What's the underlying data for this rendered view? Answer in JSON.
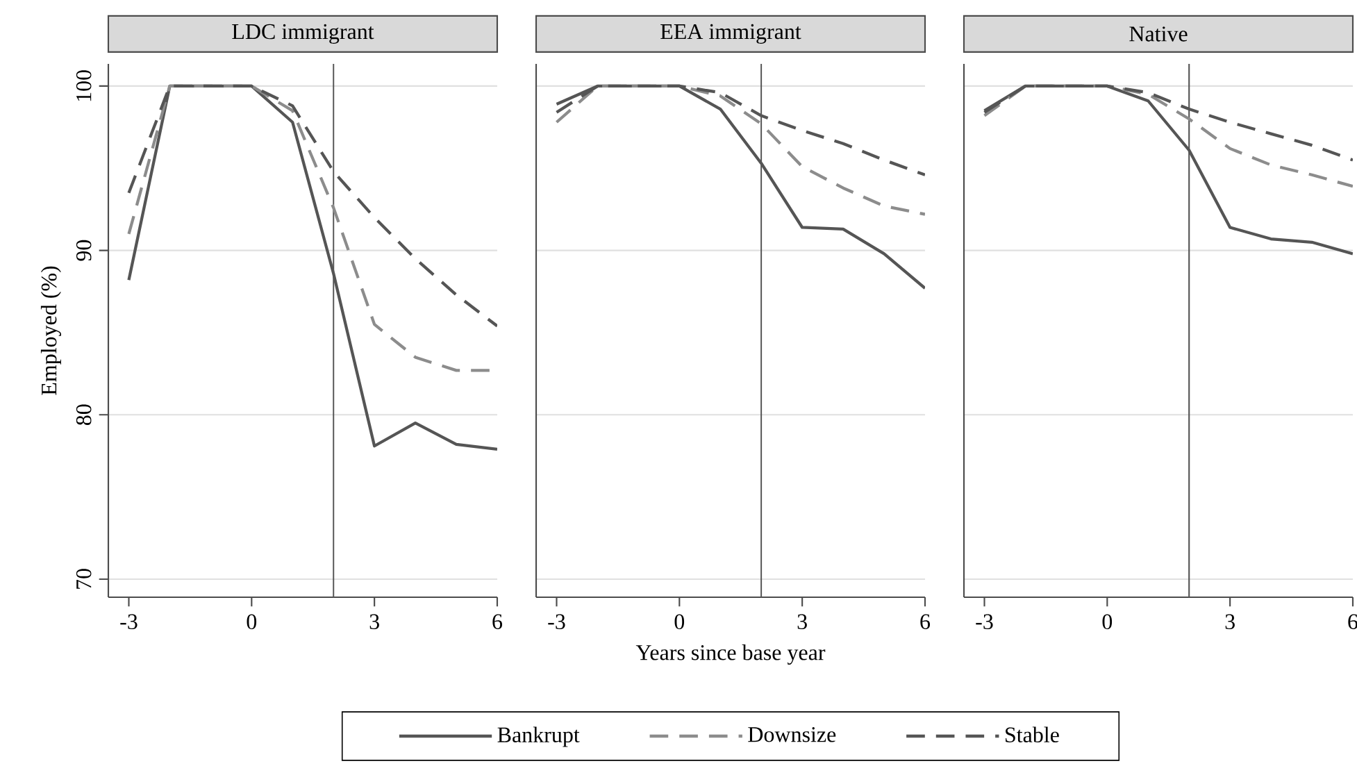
{
  "chart_data": [
    {
      "type": "line",
      "title": "LDC immigrant",
      "ylabel": "Employed (%)",
      "x": [
        -3,
        -2,
        -1,
        0,
        1,
        2,
        3,
        4,
        5,
        6
      ],
      "xlim": [
        -3.5,
        6
      ],
      "ylim": [
        68.9,
        101.35
      ],
      "xticks": [
        -3,
        0,
        3,
        6
      ],
      "yticks": [
        70,
        80,
        90,
        100
      ],
      "grid": "y",
      "legend": false,
      "ref_lines": [
        {
          "axis": "x",
          "value": 2,
          "color": "#555555"
        }
      ],
      "series": [
        {
          "color": "#555555",
          "line_style": "solid",
          "values": [
            88.2,
            100,
            100,
            100,
            97.8,
            88.6,
            78.1,
            79.5,
            78.2,
            77.9
          ]
        },
        {
          "color": "#8c8c8c",
          "line_style": "dashed",
          "values": [
            91.0,
            100,
            100,
            100,
            98.5,
            92.6,
            85.5,
            83.5,
            82.7,
            82.7
          ]
        },
        {
          "color": "#555555",
          "line_style": "dashed",
          "values": [
            93.5,
            100,
            100,
            100,
            98.8,
            94.8,
            92.0,
            89.5,
            87.3,
            85.4
          ]
        }
      ]
    },
    {
      "type": "line",
      "title": "EEA immigrant",
      "xlabel": "Years since base year",
      "x": [
        -3,
        -2,
        -1,
        0,
        1,
        2,
        3,
        4,
        5,
        6
      ],
      "xlim": [
        -3.5,
        6
      ],
      "ylim": [
        68.9,
        101.35
      ],
      "xticks": [
        -3,
        0,
        3,
        6
      ],
      "yticks": [
        70,
        80,
        90,
        100
      ],
      "grid": "y",
      "legend": "bottom",
      "tick_labels": "x",
      "ref_lines": [
        {
          "axis": "x",
          "value": 2,
          "color": "#555555"
        }
      ],
      "series": [
        {
          "name": "Bankrupt",
          "color": "#555555",
          "line_style": "solid",
          "values": [
            98.9,
            100,
            100,
            100,
            98.6,
            95.3,
            91.4,
            91.3,
            89.8,
            87.7
          ]
        },
        {
          "name": "Downsize",
          "color": "#8c8c8c",
          "line_style": "dashed",
          "values": [
            97.8,
            100,
            100,
            100,
            99.4,
            97.7,
            95.1,
            93.8,
            92.7,
            92.2
          ]
        },
        {
          "name": "Stable",
          "color": "#555555",
          "line_style": "dashed",
          "values": [
            98.4,
            100,
            100,
            100,
            99.6,
            98.2,
            97.3,
            96.5,
            95.5,
            94.6
          ]
        }
      ]
    },
    {
      "type": "line",
      "title": "Native",
      "x": [
        -3,
        -2,
        -1,
        0,
        1,
        2,
        3,
        4,
        5,
        6
      ],
      "xlim": [
        -3.5,
        6
      ],
      "ylim": [
        68.9,
        101.35
      ],
      "xticks": [
        -3,
        0,
        3,
        6
      ],
      "yticks": [
        70,
        80,
        90,
        100
      ],
      "grid": "y",
      "legend": false,
      "tick_labels": "x",
      "ref_lines": [
        {
          "axis": "x",
          "value": 2,
          "color": "#555555"
        }
      ],
      "series": [
        {
          "color": "#555555",
          "line_style": "solid",
          "values": [
            98.5,
            100,
            100,
            100,
            99.1,
            96.1,
            91.4,
            90.7,
            90.5,
            89.8
          ]
        },
        {
          "color": "#8c8c8c",
          "line_style": "dashed",
          "values": [
            98.2,
            100,
            100,
            100,
            99.5,
            98.0,
            96.2,
            95.2,
            94.6,
            93.9
          ]
        },
        {
          "color": "#555555",
          "line_style": "dashed",
          "values": [
            98.4,
            100,
            100,
            100,
            99.6,
            98.6,
            97.8,
            97.1,
            96.4,
            95.5
          ]
        }
      ]
    }
  ]
}
